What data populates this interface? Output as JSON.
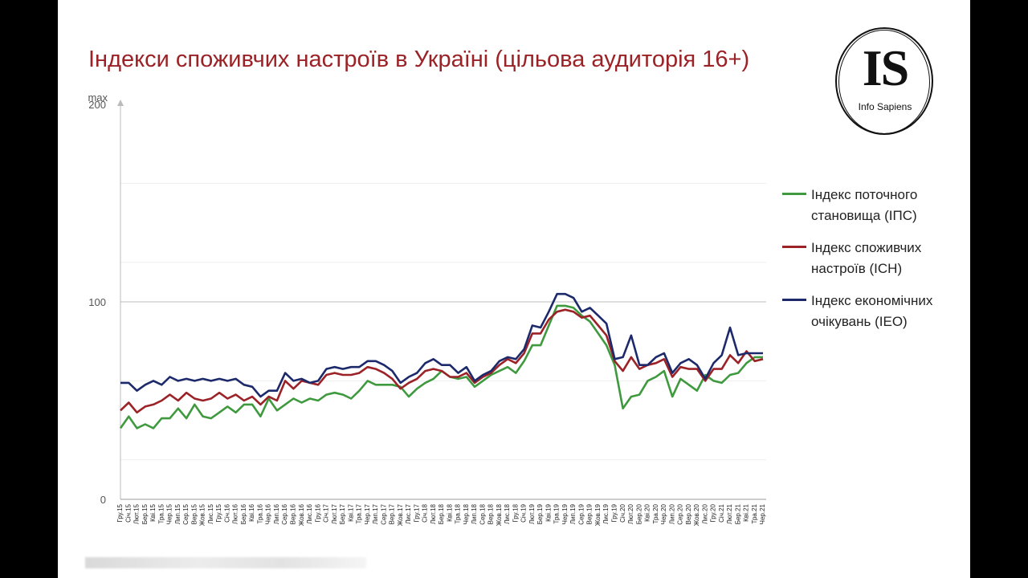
{
  "title": "Індекси споживчих настроїв в Україні (цільова аудиторія 16+)",
  "logo": {
    "mark": "IS",
    "name": "Info Sapiens"
  },
  "chart_data": {
    "type": "line",
    "title": "Індекси споживчих настроїв в Україні (цільова аудиторія 16+)",
    "y_max_label": "max",
    "y_ticks": [
      0,
      100,
      200
    ],
    "ylim": [
      0,
      200
    ],
    "grid": "horizontal",
    "legend_position": "right",
    "x": [
      "Гру.15",
      "Січ.15",
      "Лют.15",
      "Бер.15",
      "Кві.15",
      "Тра.15",
      "Чер.15",
      "Лип.15",
      "Сер.15",
      "Вер.15",
      "Жов.15",
      "Лис.15",
      "Гру.15",
      "Січ.16",
      "Лют.16",
      "Бер.16",
      "Кві.16",
      "Тра.16",
      "Чер.16",
      "Лип.16",
      "Сер.16",
      "Вер.16",
      "Жов.16",
      "Лис.16",
      "Гру.16",
      "Січ.17",
      "Лют.17",
      "Бер.17",
      "Кві.17",
      "Тра.17",
      "Чер.17",
      "Лип.17",
      "Сер.17",
      "Вер.17",
      "Жов.17",
      "Лис.17",
      "Гру.17",
      "Січ.18",
      "Лют.18",
      "Бер.18",
      "Кві.18",
      "Тра.18",
      "Чер.18",
      "Лип.18",
      "Сер.18",
      "Вер.18",
      "Жов.18",
      "Лис.18",
      "Гру.18",
      "Січ.19",
      "Лют.19",
      "Бер.19",
      "Кві.19",
      "Тра.19",
      "Чер.19",
      "Лип.19",
      "Сер.19",
      "Вер.19",
      "Жов.19",
      "Лис.19",
      "Гру.19",
      "Січ.20",
      "Лют.20",
      "Бер.20",
      "Кві.20",
      "Тра.20",
      "Чер.20",
      "Лип.20",
      "Сер.20",
      "Вер.20",
      "Жов.20",
      "Лис.20",
      "Гру.20",
      "Січ.21",
      "Лют.21",
      "Бер.21",
      "Кві.21",
      "Тра.21",
      "Чер.21"
    ],
    "series": [
      {
        "name": "Індекс поточного становища (ІПС)",
        "color": "#3f9a3f",
        "values": [
          36,
          42,
          36,
          38,
          36,
          41,
          41,
          46,
          41,
          48,
          42,
          41,
          44,
          47,
          44,
          48,
          48,
          42,
          51,
          45,
          48,
          51,
          49,
          51,
          50,
          53,
          54,
          53,
          51,
          55,
          60,
          58,
          58,
          58,
          57,
          52,
          56,
          59,
          61,
          65,
          62,
          61,
          62,
          57,
          60,
          63,
          65,
          67,
          64,
          70,
          78,
          78,
          88,
          98,
          98,
          97,
          93,
          90,
          84,
          78,
          68,
          46,
          52,
          53,
          60,
          62,
          65,
          52,
          61,
          58,
          55,
          63,
          60,
          59,
          63,
          64,
          69,
          72,
          72
        ]
      },
      {
        "name": "Індекс споживчих настроїв (ІСН)",
        "color": "#9b2226",
        "values": [
          45,
          49,
          44,
          47,
          48,
          50,
          53,
          50,
          54,
          51,
          50,
          51,
          54,
          51,
          53,
          50,
          52,
          48,
          52,
          50,
          60,
          56,
          60,
          59,
          58,
          63,
          64,
          63,
          63,
          64,
          67,
          66,
          64,
          61,
          56,
          59,
          61,
          65,
          66,
          65,
          62,
          62,
          64,
          59,
          62,
          64,
          68,
          71,
          69,
          74,
          84,
          84,
          91,
          95,
          96,
          95,
          92,
          93,
          88,
          83,
          70,
          65,
          72,
          66,
          68,
          69,
          71,
          62,
          67,
          66,
          66,
          60,
          66,
          66,
          73,
          69,
          75,
          70,
          71
        ]
      },
      {
        "name": "Індекс економічних очікувань (IEO)",
        "color": "#1c2a6b",
        "values": [
          59,
          59,
          55,
          58,
          60,
          58,
          62,
          60,
          61,
          60,
          61,
          60,
          61,
          60,
          61,
          58,
          57,
          52,
          55,
          55,
          64,
          60,
          61,
          59,
          60,
          66,
          67,
          66,
          67,
          67,
          70,
          70,
          68,
          65,
          59,
          62,
          64,
          69,
          71,
          68,
          68,
          64,
          67,
          60,
          63,
          65,
          70,
          72,
          71,
          76,
          88,
          87,
          95,
          104,
          104,
          102,
          95,
          97,
          93,
          89,
          71,
          72,
          83,
          68,
          68,
          72,
          74,
          64,
          69,
          71,
          68,
          61,
          69,
          73,
          87,
          73,
          74,
          74,
          74
        ]
      }
    ]
  },
  "legend": [
    {
      "label": "Індекс поточного становища (ІПС)",
      "color": "#3f9a3f"
    },
    {
      "label": "Індекс споживчих настроїв (ІСН)",
      "color": "#9b2226"
    },
    {
      "label": "Індекс економічних очікувань (IEO)",
      "color": "#1c2a6b"
    }
  ]
}
